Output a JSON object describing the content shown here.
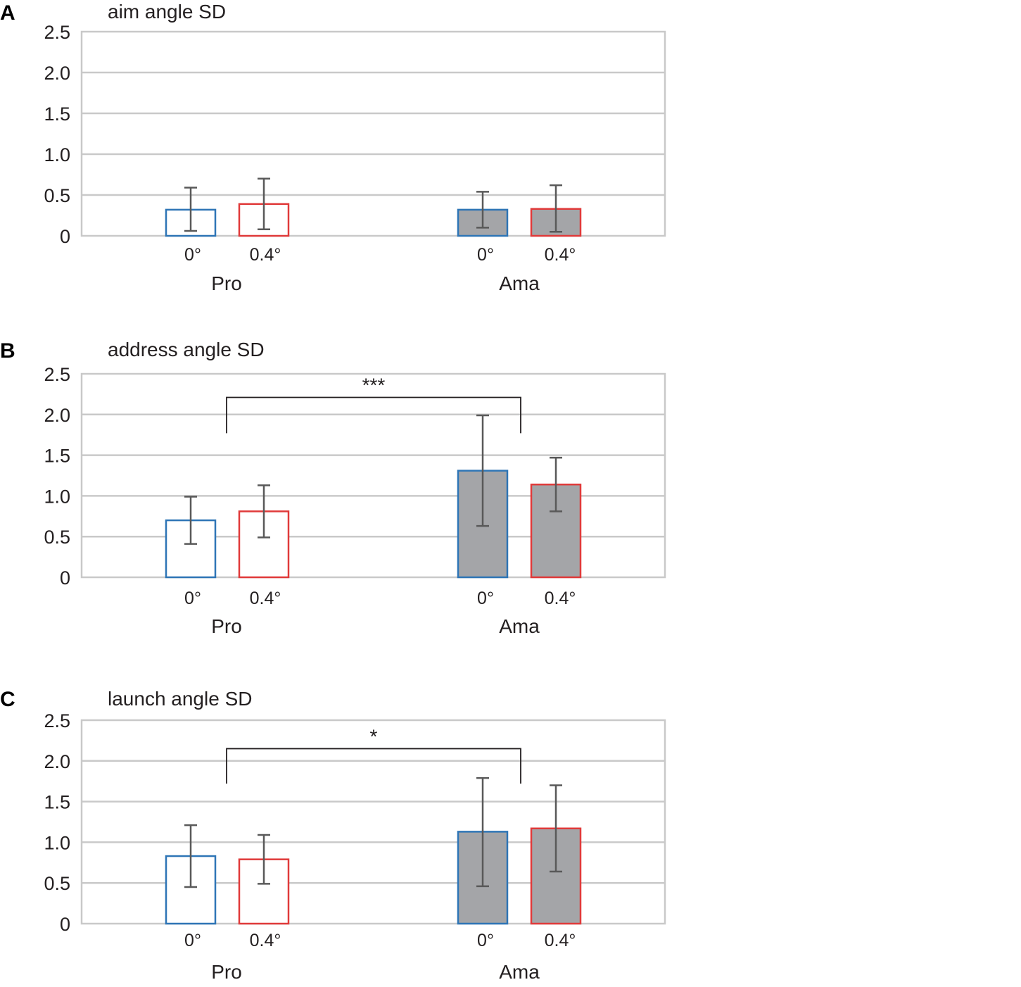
{
  "chart_data": [
    {
      "type": "bar",
      "panel": "A",
      "title": "aim angle SD",
      "ylim": [
        0,
        2.5
      ],
      "yticks": [
        "0",
        "0.5",
        "1.0",
        "1.5",
        "2.0",
        "2.5"
      ],
      "groups": [
        "Pro",
        "Ama"
      ],
      "conditions": [
        "0°",
        "0.4°"
      ],
      "series": [
        {
          "group": "Pro",
          "condition": "0°",
          "value": 0.32,
          "err_low": 0.06,
          "err_high": 0.59,
          "fill": "#ffffff",
          "stroke": "#2e75b6"
        },
        {
          "group": "Pro",
          "condition": "0.4°",
          "value": 0.39,
          "err_low": 0.08,
          "err_high": 0.7,
          "fill": "#ffffff",
          "stroke": "#e03a3a"
        },
        {
          "group": "Ama",
          "condition": "0°",
          "value": 0.32,
          "err_low": 0.1,
          "err_high": 0.54,
          "fill": "#a4a5a8",
          "stroke": "#2e75b6"
        },
        {
          "group": "Ama",
          "condition": "0.4°",
          "value": 0.33,
          "err_low": 0.05,
          "err_high": 0.62,
          "fill": "#a4a5a8",
          "stroke": "#e03a3a"
        }
      ],
      "significance": null
    },
    {
      "type": "bar",
      "panel": "B",
      "title": "address angle SD",
      "ylim": [
        0,
        2.5
      ],
      "yticks": [
        "0",
        "0.5",
        "1.0",
        "1.5",
        "2.0",
        "2.5"
      ],
      "groups": [
        "Pro",
        "Ama"
      ],
      "conditions": [
        "0°",
        "0.4°"
      ],
      "series": [
        {
          "group": "Pro",
          "condition": "0°",
          "value": 0.7,
          "err_low": 0.41,
          "err_high": 0.99,
          "fill": "#ffffff",
          "stroke": "#2e75b6"
        },
        {
          "group": "Pro",
          "condition": "0.4°",
          "value": 0.81,
          "err_low": 0.49,
          "err_high": 1.13,
          "fill": "#ffffff",
          "stroke": "#e03a3a"
        },
        {
          "group": "Ama",
          "condition": "0°",
          "value": 1.31,
          "err_low": 0.63,
          "err_high": 1.99,
          "fill": "#a4a5a8",
          "stroke": "#2e75b6"
        },
        {
          "group": "Ama",
          "condition": "0.4°",
          "value": 1.14,
          "err_low": 0.81,
          "err_high": 1.47,
          "fill": "#a4a5a8",
          "stroke": "#e03a3a"
        }
      ],
      "significance": {
        "from": "Pro",
        "to": "Ama",
        "label": "***",
        "level": 2.21,
        "tick_bottom": 1.77
      }
    },
    {
      "type": "bar",
      "panel": "C",
      "title": "launch angle SD",
      "ylim": [
        0,
        2.5
      ],
      "yticks": [
        "0",
        "0.5",
        "1.0",
        "1.5",
        "2.0",
        "2.5"
      ],
      "groups": [
        "Pro",
        "Ama"
      ],
      "conditions": [
        "0°",
        "0.4°"
      ],
      "series": [
        {
          "group": "Pro",
          "condition": "0°",
          "value": 0.83,
          "err_low": 0.45,
          "err_high": 1.21,
          "fill": "#ffffff",
          "stroke": "#2e75b6"
        },
        {
          "group": "Pro",
          "condition": "0.4°",
          "value": 0.79,
          "err_low": 0.49,
          "err_high": 1.09,
          "fill": "#ffffff",
          "stroke": "#e03a3a"
        },
        {
          "group": "Ama",
          "condition": "0°",
          "value": 1.13,
          "err_low": 0.46,
          "err_high": 1.79,
          "fill": "#a4a5a8",
          "stroke": "#2e75b6"
        },
        {
          "group": "Ama",
          "condition": "0.4°",
          "value": 1.17,
          "err_low": 0.64,
          "err_high": 1.7,
          "fill": "#a4a5a8",
          "stroke": "#e03a3a"
        }
      ],
      "significance": {
        "from": "Pro",
        "to": "Ama",
        "label": "*",
        "level": 2.15,
        "tick_bottom": 1.72
      }
    }
  ]
}
